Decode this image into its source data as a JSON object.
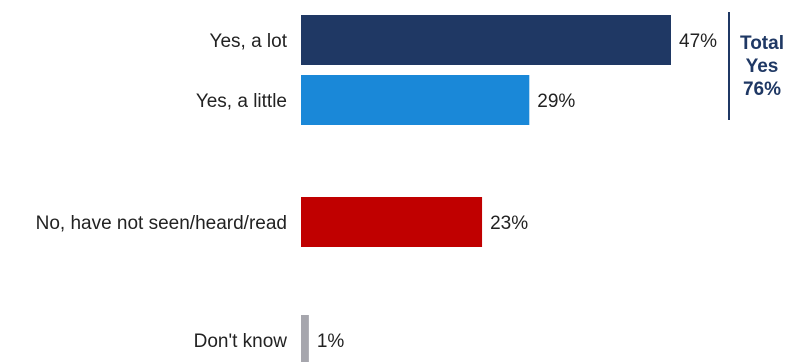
{
  "chart_data": {
    "type": "bar",
    "orientation": "horizontal",
    "categories": [
      "Yes, a lot",
      "Yes, a little",
      "No, have not seen/heard/read",
      "Don't know"
    ],
    "values": [
      47,
      29,
      23,
      1
    ],
    "value_labels": [
      "47%",
      "29%",
      "23%",
      "1%"
    ],
    "unit": "%",
    "xlim": [
      0,
      50
    ],
    "grid": false,
    "colors": [
      "#1f3864",
      "#1a88d8",
      "#c00000",
      "#a6a6ad"
    ],
    "annotation": {
      "lines": [
        "Total",
        "Yes",
        "76%"
      ],
      "color": "#1f3864",
      "applies_to": [
        "Yes, a lot",
        "Yes, a little"
      ]
    }
  }
}
